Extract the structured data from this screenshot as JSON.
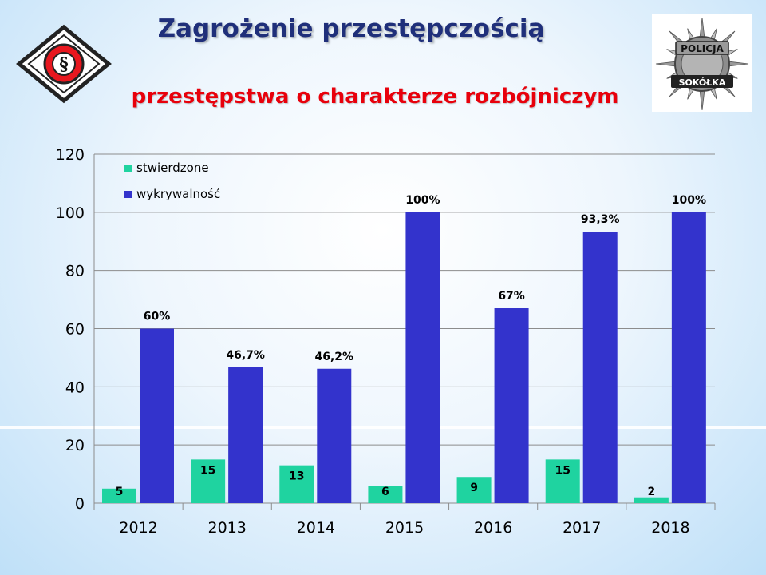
{
  "header": {
    "title": "Zagrożenie przestępczością",
    "subtitle": "przestępstwa o charakterze rozbójniczym"
  },
  "logos": {
    "left": {
      "icon": "paragraph-diamond-logo",
      "symbol": "§"
    },
    "right": {
      "icon": "police-star-badge",
      "text_top": "POLICJA",
      "text_bottom": "SOKÓŁKA"
    }
  },
  "colors": {
    "stwierdzone": "#1fd3a0",
    "wykrywalnosc": "#3333cc",
    "title": "#1f2f7a",
    "subtitle": "#e8000b"
  },
  "chart_data": {
    "type": "bar",
    "categories": [
      "2012",
      "2013",
      "2014",
      "2015",
      "2016",
      "2017",
      "2018"
    ],
    "series": [
      {
        "name": "stwierdzone",
        "values": [
          5,
          15,
          13,
          6,
          9,
          15,
          2
        ],
        "labels": [
          "5",
          "15",
          "13",
          "6",
          "9",
          "15",
          "2"
        ]
      },
      {
        "name": "wykrywalność",
        "values": [
          60,
          46.7,
          46.2,
          100,
          67,
          93.3,
          100
        ],
        "labels": [
          "60%",
          "46,7%",
          "46,2%",
          "100%",
          "67%",
          "93,3%",
          "100%"
        ]
      }
    ],
    "ylim": [
      0,
      120
    ],
    "yticks": [
      0,
      20,
      40,
      60,
      80,
      100,
      120
    ],
    "grid": true,
    "legend": "top-left"
  }
}
